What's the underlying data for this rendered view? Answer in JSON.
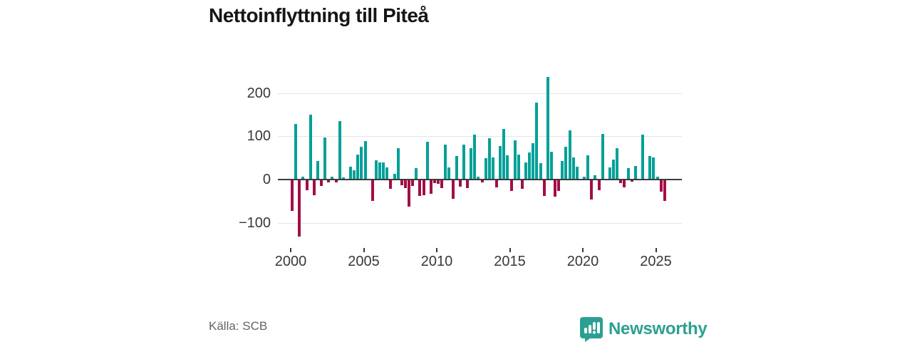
{
  "title": "Nettoinflyttning till Piteå",
  "source": "Källa: SCB",
  "brand": {
    "name": "Newsworthy"
  },
  "colors": {
    "positive_bar": "#00a098",
    "negative_bar": "#a30d47",
    "logo_teal": "#2ba092",
    "gridline": "#e4e4e4",
    "zero_line": "#3c3c3c",
    "axis_text": "#383838"
  },
  "chart_data": {
    "type": "bar",
    "title": "Nettoinflyttning till Piteå",
    "frequency": "quarterly",
    "start_period": "2000 Q1",
    "end_period": "2025 Q3",
    "xlabel": "",
    "ylabel": "",
    "ylim": [
      -150,
      250
    ],
    "grid": "horizontal",
    "legend": "none",
    "y_ticks": [
      200,
      100,
      0,
      -100
    ],
    "y_tick_labels": [
      "200",
      "100",
      "0",
      "−100"
    ],
    "x_tick_years": [
      2000,
      2005,
      2010,
      2015,
      2020,
      2025
    ],
    "x_tick_labels": [
      "2000",
      "2005",
      "2010",
      "2015",
      "2020",
      "2025"
    ],
    "series": [
      {
        "name": "Nettoinflyttning",
        "values": [
          -72,
          128,
          -131,
          7,
          -25,
          149,
          -37,
          42,
          -14,
          97,
          -7,
          7,
          -7,
          135,
          5,
          -2,
          29,
          21,
          58,
          76,
          89,
          2,
          -49,
          44,
          40,
          39,
          28,
          -21,
          13,
          73,
          -13,
          -19,
          -62,
          -15,
          27,
          -38,
          -37,
          88,
          -33,
          -9,
          -10,
          -20,
          81,
          28,
          -45,
          55,
          -16,
          80,
          -20,
          72,
          104,
          7,
          -6,
          50,
          95,
          51,
          -18,
          78,
          117,
          56,
          -26,
          91,
          58,
          -21,
          40,
          63,
          84,
          177,
          38,
          -38,
          237,
          65,
          -40,
          -27,
          42,
          75,
          113,
          51,
          29,
          1,
          6,
          56,
          -46,
          10,
          -24,
          106,
          2,
          28,
          46,
          73,
          -9,
          -18,
          26,
          -5,
          31,
          1,
          104,
          1,
          54,
          51,
          6,
          -28,
          -49
        ]
      }
    ]
  }
}
